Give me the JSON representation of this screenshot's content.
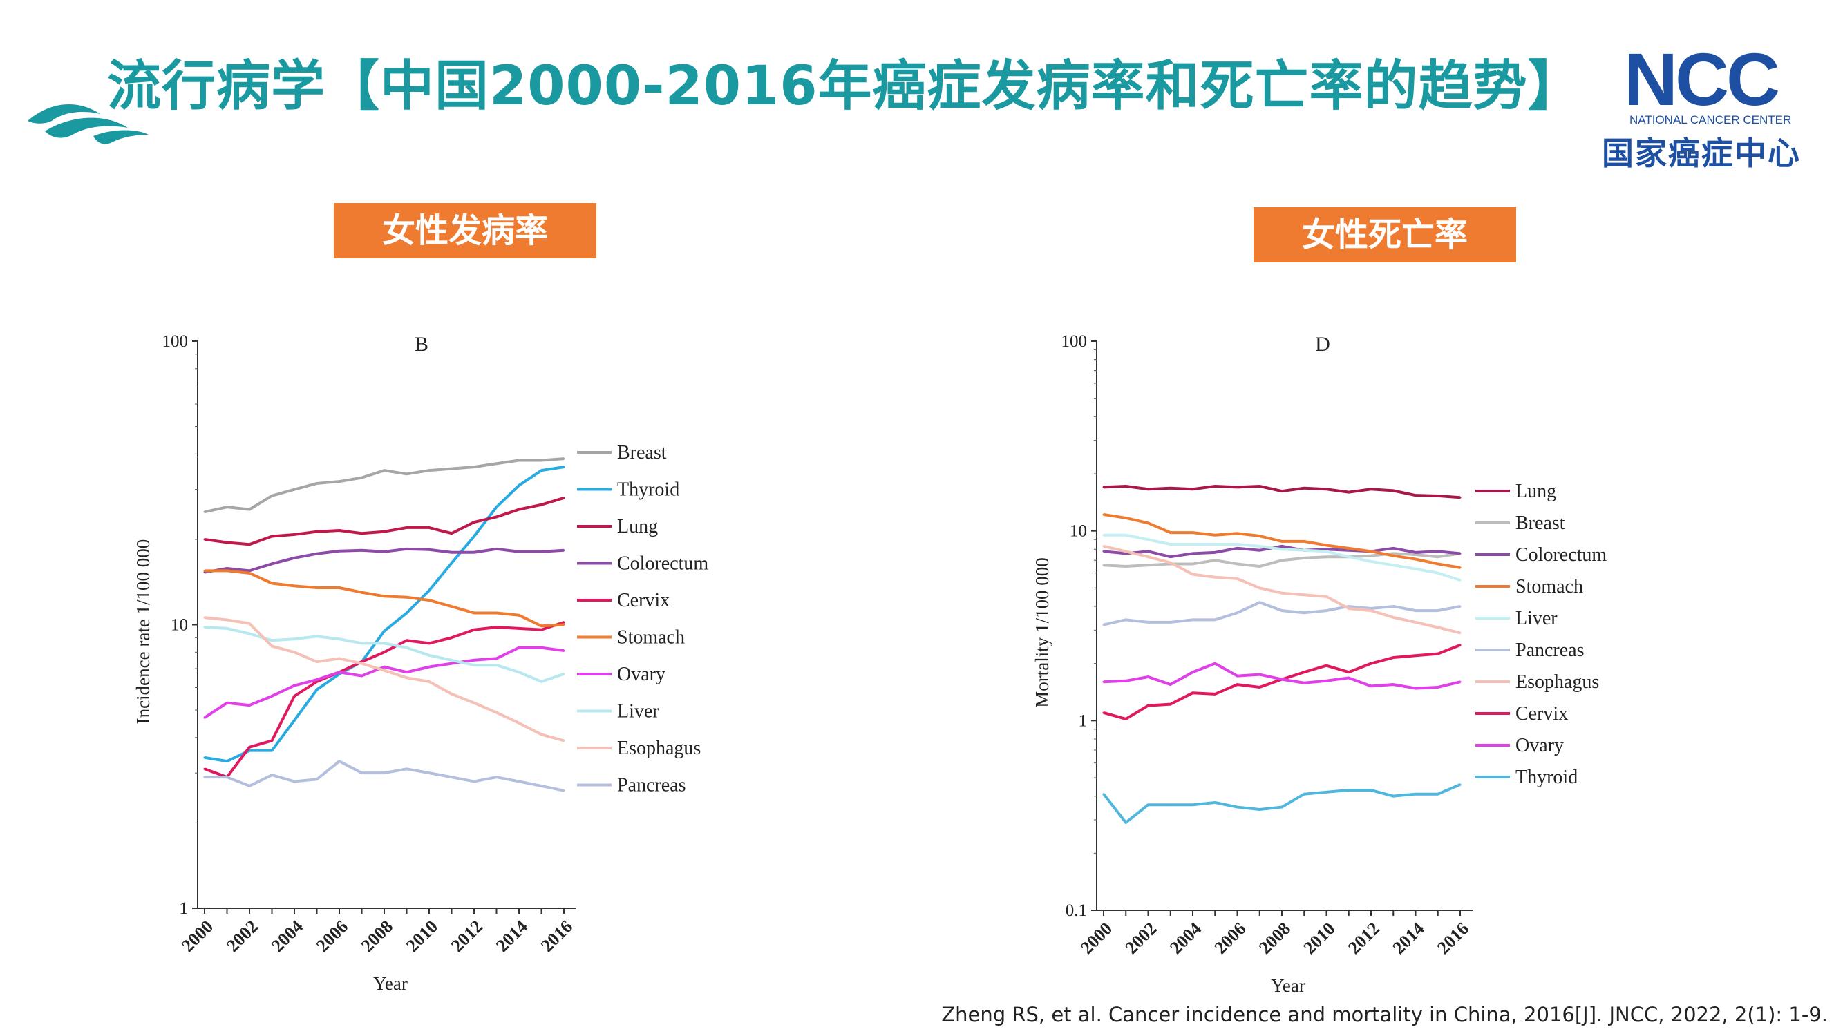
{
  "title": "流行病学【中国2000-2016年癌症发病率和死亡率的趋势】",
  "logo": {
    "letters": "NCC",
    "subtitle": "NATIONAL CANCER CENTER",
    "chinese": "国家癌症中心"
  },
  "badges": {
    "incidence": "女性发病率",
    "mortality": "女性死亡率"
  },
  "citation": "Zheng RS, et al. Cancer incidence and mortality in China, 2016[J]. JNCC, 2022, 2(1): 1-9.",
  "colors": {
    "title": "#1a9aa0",
    "badge": "#ee7b30",
    "logo": "#1d4fa3"
  },
  "chart_data": [
    {
      "type": "line",
      "title": "B",
      "xlabel": "Year",
      "ylabel": "Incidence rate 1/100 000",
      "yscale": "log",
      "ylim": [
        1,
        100
      ],
      "yticks": [
        "1",
        "10",
        "100"
      ],
      "xticks": [
        "2000",
        "2002",
        "2004",
        "2006",
        "2008",
        "2010",
        "2012",
        "2014",
        "2016"
      ],
      "legend": "right",
      "x": [
        2000,
        2001,
        2002,
        2003,
        2004,
        2005,
        2006,
        2007,
        2008,
        2009,
        2010,
        2011,
        2012,
        2013,
        2014,
        2015,
        2016
      ],
      "series": [
        {
          "name": "Breast",
          "color": "#a6a6a6",
          "values": [
            25,
            26,
            25.5,
            28.5,
            30,
            31.5,
            32,
            33,
            35,
            34,
            35,
            35.5,
            36,
            37,
            38,
            38,
            38.5
          ]
        },
        {
          "name": "Thyroid",
          "color": "#29abe2",
          "values": [
            3.4,
            3.3,
            3.6,
            3.6,
            4.6,
            5.9,
            6.7,
            7.4,
            9.5,
            11,
            13.2,
            16.5,
            20.5,
            26,
            31,
            35,
            36
          ]
        },
        {
          "name": "Lung",
          "color": "#c0184a",
          "values": [
            20,
            19.5,
            19.2,
            20.5,
            20.8,
            21.3,
            21.5,
            21,
            21.3,
            22,
            22,
            21,
            23,
            24,
            25.5,
            26.5,
            28
          ]
        },
        {
          "name": "Colorectum",
          "color": "#8b4ba6",
          "values": [
            15.3,
            15.8,
            15.5,
            16.4,
            17.2,
            17.8,
            18.2,
            18.3,
            18.1,
            18.5,
            18.4,
            18,
            18,
            18.5,
            18.1,
            18.1,
            18.3
          ]
        },
        {
          "name": "Cervix",
          "color": "#e0185f",
          "values": [
            3.1,
            2.9,
            3.7,
            3.9,
            5.6,
            6.3,
            6.8,
            7.4,
            8,
            8.8,
            8.6,
            9,
            9.6,
            9.8,
            9.7,
            9.6,
            10.2
          ]
        },
        {
          "name": "Stomach",
          "color": "#ee7b30",
          "values": [
            15.5,
            15.5,
            15.2,
            14,
            13.7,
            13.5,
            13.5,
            13,
            12.6,
            12.5,
            12.2,
            11.6,
            11,
            11,
            10.8,
            9.9,
            10
          ]
        },
        {
          "name": "Ovary",
          "color": "#e040e8",
          "values": [
            4.7,
            5.3,
            5.2,
            5.6,
            6.1,
            6.4,
            6.8,
            6.6,
            7.1,
            6.8,
            7.1,
            7.3,
            7.5,
            7.6,
            8.3,
            8.3,
            8.1
          ]
        },
        {
          "name": "Liver",
          "color": "#b8e8ef",
          "values": [
            9.8,
            9.7,
            9.3,
            8.8,
            8.9,
            9.1,
            8.9,
            8.6,
            8.6,
            8.3,
            7.8,
            7.5,
            7.2,
            7.2,
            6.8,
            6.3,
            6.7
          ]
        },
        {
          "name": "Esophagus",
          "color": "#f5c0b5",
          "values": [
            10.6,
            10.4,
            10.1,
            8.4,
            8,
            7.4,
            7.6,
            7.3,
            6.9,
            6.5,
            6.3,
            5.7,
            5.3,
            4.9,
            4.5,
            4.1,
            3.9
          ]
        },
        {
          "name": "Pancreas",
          "color": "#b4bedd",
          "values": [
            2.9,
            2.9,
            2.7,
            2.95,
            2.8,
            2.85,
            3.3,
            3,
            3,
            3.1,
            3,
            2.9,
            2.8,
            2.9,
            2.8,
            2.7,
            2.6
          ]
        }
      ]
    },
    {
      "type": "line",
      "title": "D",
      "xlabel": "Year",
      "ylabel": "Mortality  1/100 000",
      "yscale": "log",
      "ylim": [
        0.1,
        100
      ],
      "yticks": [
        "0.1",
        "1",
        "10",
        "100"
      ],
      "xticks": [
        "2000",
        "2002",
        "2004",
        "2006",
        "2008",
        "2010",
        "2012",
        "2014",
        "2016"
      ],
      "legend": "right",
      "x": [
        2000,
        2001,
        2002,
        2003,
        2004,
        2005,
        2006,
        2007,
        2008,
        2009,
        2010,
        2011,
        2012,
        2013,
        2014,
        2015,
        2016
      ],
      "series": [
        {
          "name": "Lung",
          "color": "#a8174a",
          "values": [
            17,
            17.2,
            16.6,
            16.8,
            16.6,
            17.2,
            17,
            17.2,
            16.2,
            16.8,
            16.6,
            16,
            16.6,
            16.3,
            15.4,
            15.3,
            15
          ]
        },
        {
          "name": "Breast",
          "color": "#bdbdbd",
          "values": [
            6.6,
            6.5,
            6.6,
            6.7,
            6.7,
            7,
            6.7,
            6.5,
            7,
            7.2,
            7.3,
            7.3,
            7.4,
            7.6,
            7.5,
            7.3,
            7.6
          ]
        },
        {
          "name": "Colorectum",
          "color": "#8b4ba6",
          "values": [
            7.8,
            7.6,
            7.8,
            7.3,
            7.6,
            7.7,
            8.1,
            7.9,
            8.3,
            7.9,
            8,
            7.9,
            7.8,
            8.1,
            7.7,
            7.8,
            7.6
          ]
        },
        {
          "name": "Stomach",
          "color": "#ee7b30",
          "values": [
            12.2,
            11.7,
            11,
            9.8,
            9.8,
            9.5,
            9.7,
            9.4,
            8.8,
            8.8,
            8.4,
            8.1,
            7.8,
            7.4,
            7.1,
            6.7,
            6.4
          ]
        },
        {
          "name": "Liver",
          "color": "#c4eef2",
          "values": [
            9.5,
            9.5,
            9,
            8.5,
            8.5,
            8.5,
            8.5,
            8.3,
            8,
            7.9,
            7.8,
            7.3,
            6.9,
            6.6,
            6.3,
            6,
            5.5
          ]
        },
        {
          "name": "Pancreas",
          "color": "#b4bedd",
          "values": [
            3.2,
            3.4,
            3.3,
            3.3,
            3.4,
            3.4,
            3.7,
            4.2,
            3.8,
            3.7,
            3.8,
            4,
            3.9,
            4,
            3.8,
            3.8,
            4
          ]
        },
        {
          "name": "Esophagus",
          "color": "#f5c0b5",
          "values": [
            8.3,
            7.8,
            7.3,
            6.8,
            5.9,
            5.7,
            5.6,
            5,
            4.7,
            4.6,
            4.5,
            3.9,
            3.8,
            3.5,
            3.3,
            3.1,
            2.9
          ]
        },
        {
          "name": "Cervix",
          "color": "#e0185f",
          "values": [
            1.1,
            1.02,
            1.2,
            1.22,
            1.4,
            1.38,
            1.55,
            1.5,
            1.65,
            1.8,
            1.95,
            1.8,
            2,
            2.15,
            2.2,
            2.25,
            2.5
          ]
        },
        {
          "name": "Ovary",
          "color": "#e040e8",
          "values": [
            1.6,
            1.62,
            1.7,
            1.55,
            1.8,
            2,
            1.72,
            1.75,
            1.65,
            1.58,
            1.62,
            1.68,
            1.52,
            1.55,
            1.48,
            1.5,
            1.6
          ]
        },
        {
          "name": "Thyroid",
          "color": "#4fb6dd",
          "values": [
            0.41,
            0.29,
            0.36,
            0.36,
            0.36,
            0.37,
            0.35,
            0.34,
            0.35,
            0.41,
            0.42,
            0.43,
            0.43,
            0.4,
            0.41,
            0.41,
            0.46
          ]
        }
      ]
    }
  ]
}
